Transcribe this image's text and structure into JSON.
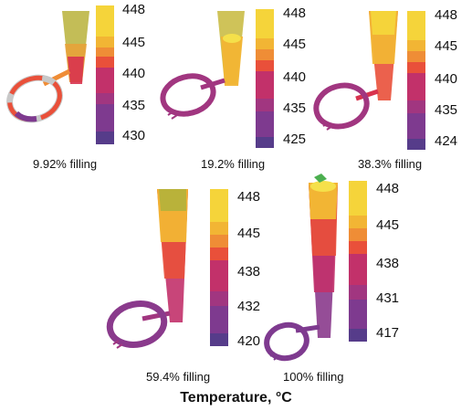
{
  "figure": {
    "title": "Temperature, °C",
    "panels": [
      {
        "caption": "9.92% filling",
        "ticks": [
          "448",
          "445",
          "440",
          "435",
          "430"
        ]
      },
      {
        "caption": "19.2% filling",
        "ticks": [
          "448",
          "445",
          "440",
          "435",
          "425"
        ]
      },
      {
        "caption": "38.3% filling",
        "ticks": [
          "448",
          "445",
          "440",
          "435",
          "424"
        ]
      },
      {
        "caption": "59.4% filling",
        "ticks": [
          "448",
          "445",
          "438",
          "432",
          "420"
        ]
      },
      {
        "caption": "100% filling",
        "ticks": [
          "448",
          "445",
          "438",
          "431",
          "417"
        ]
      }
    ],
    "colorscale": [
      "#f5d43a",
      "#f2b534",
      "#ef8d36",
      "#e9503a",
      "#d8334e",
      "#c2316a",
      "#a13680",
      "#7e3a8f",
      "#563c8a"
    ]
  }
}
